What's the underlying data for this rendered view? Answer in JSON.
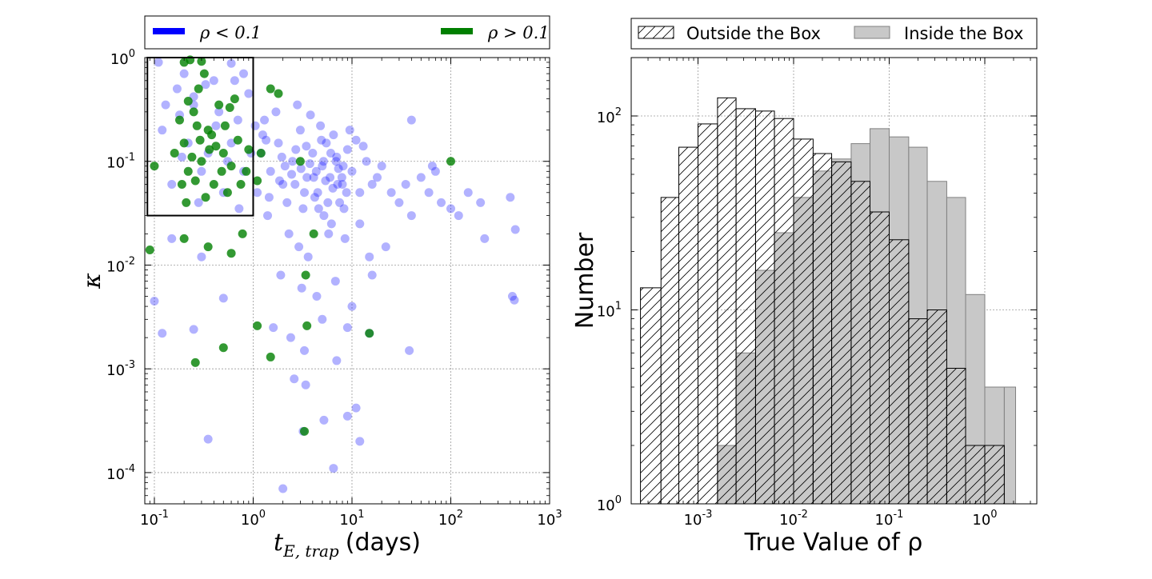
{
  "chart_data": [
    {
      "type": "scatter",
      "xlabel": "t_{E,trap} (days)",
      "xlabel_math": "t",
      "xlabel_sub": "E, trap",
      "xlabel_unit": "(days)",
      "ylabel": "κ",
      "xscale": "log",
      "yscale": "log",
      "xlim": [
        0.08,
        1000
      ],
      "ylim": [
        5e-05,
        1
      ],
      "xticks": [
        {
          "v": 0.1,
          "base": "10",
          "exp": "-1"
        },
        {
          "v": 1,
          "base": "10",
          "exp": "0"
        },
        {
          "v": 10,
          "base": "10",
          "exp": "1"
        },
        {
          "v": 100,
          "base": "10",
          "exp": "2"
        },
        {
          "v": 1000,
          "base": "10",
          "exp": "3"
        }
      ],
      "yticks": [
        {
          "v": 0.0001,
          "base": "10",
          "exp": "-4"
        },
        {
          "v": 0.001,
          "base": "10",
          "exp": "-3"
        },
        {
          "v": 0.01,
          "base": "10",
          "exp": "-2"
        },
        {
          "v": 0.1,
          "base": "10",
          "exp": "-1"
        },
        {
          "v": 1,
          "base": "10",
          "exp": "0"
        }
      ],
      "grid": true,
      "legend": {
        "placement": "top",
        "entries": [
          {
            "label": "ρ < 0.1",
            "color": "#0000ff"
          },
          {
            "label": "ρ > 0.1",
            "color": "#007f00"
          }
        ]
      },
      "box": {
        "x": [
          0.085,
          1.0
        ],
        "y": [
          0.03,
          1.0
        ]
      },
      "series": [
        {
          "color": "#0000ff",
          "opacity": 0.3,
          "points": [
            [
              0.17,
              0.5
            ],
            [
              0.25,
              0.35
            ],
            [
              0.4,
              0.6
            ],
            [
              0.12,
              0.2
            ],
            [
              0.6,
              0.15
            ],
            [
              0.3,
              0.08
            ],
            [
              0.9,
              0.45
            ],
            [
              0.15,
              0.06
            ],
            [
              0.5,
              0.05
            ],
            [
              0.2,
              0.7
            ],
            [
              0.7,
              0.25
            ],
            [
              0.35,
              0.12
            ],
            [
              0.13,
              0.35
            ],
            [
              0.8,
              0.08
            ],
            [
              0.45,
              0.3
            ],
            [
              0.22,
              0.15
            ],
            [
              0.11,
              0.9
            ],
            [
              0.65,
              0.6
            ],
            [
              0.28,
              0.04
            ],
            [
              0.55,
              0.1
            ],
            [
              1.2,
              0.12
            ],
            [
              1.5,
              0.08
            ],
            [
              1.8,
              0.15
            ],
            [
              2.0,
              0.06
            ],
            [
              2.5,
              0.1
            ],
            [
              3.0,
              0.2
            ],
            [
              3.5,
              0.07
            ],
            [
              4.0,
              0.12
            ],
            [
              4.5,
              0.05
            ],
            [
              5.0,
              0.09
            ],
            [
              5.5,
              0.15
            ],
            [
              6.0,
              0.07
            ],
            [
              7.0,
              0.11
            ],
            [
              8.0,
              0.06
            ],
            [
              9.0,
              0.13
            ],
            [
              10,
              0.08
            ],
            [
              12,
              0.05
            ],
            [
              14,
              0.1
            ],
            [
              16,
              0.06
            ],
            [
              18,
              0.07
            ],
            [
              20,
              0.09
            ],
            [
              25,
              0.05
            ],
            [
              30,
              0.04
            ],
            [
              35,
              0.06
            ],
            [
              40,
              0.03
            ],
            [
              2.2,
              0.04
            ],
            [
              3.2,
              0.035
            ],
            [
              4.2,
              0.045
            ],
            [
              5.2,
              0.03
            ],
            [
              6.2,
              0.025
            ],
            [
              7.5,
              0.04
            ],
            [
              1.3,
              0.25
            ],
            [
              1.7,
              0.3
            ],
            [
              2.8,
              0.35
            ],
            [
              3.8,
              0.28
            ],
            [
              4.8,
              0.22
            ],
            [
              6.5,
              0.18
            ],
            [
              9.5,
              0.2
            ],
            [
              11,
              0.16
            ],
            [
              13,
              0.14
            ],
            [
              1.1,
              0.05
            ],
            [
              1.4,
              0.03
            ],
            [
              2.3,
              0.02
            ],
            [
              2.9,
              0.015
            ],
            [
              3.6,
              0.012
            ],
            [
              5.8,
              0.02
            ],
            [
              8.5,
              0.018
            ],
            [
              12,
              0.025
            ],
            [
              15,
              0.012
            ],
            [
              22,
              0.015
            ],
            [
              1.9,
              0.008
            ],
            [
              3.1,
              0.006
            ],
            [
              4.4,
              0.005
            ],
            [
              6.8,
              0.007
            ],
            [
              10,
              0.004
            ],
            [
              16,
              0.008
            ],
            [
              1.6,
              0.0025
            ],
            [
              2.4,
              0.002
            ],
            [
              3.3,
              0.0015
            ],
            [
              5,
              0.003
            ],
            [
              7,
              0.0012
            ],
            [
              9,
              0.0025
            ],
            [
              2.6,
              0.0008
            ],
            [
              3.4,
              0.0007
            ],
            [
              9,
              0.00035
            ],
            [
              6.5,
              0.00011
            ],
            [
              2.0,
              7e-05
            ],
            [
              0.35,
              0.00021
            ],
            [
              0.5,
              0.0048
            ],
            [
              0.25,
              0.0024
            ],
            [
              0.12,
              0.0022
            ],
            [
              0.1,
              0.0045
            ],
            [
              0.15,
              0.018
            ],
            [
              0.3,
              0.012
            ],
            [
              50,
              0.07
            ],
            [
              60,
              0.05
            ],
            [
              70,
              0.08
            ],
            [
              80,
              0.04
            ],
            [
              120,
              0.03
            ],
            [
              150,
              0.05
            ],
            [
              200,
              0.04
            ],
            [
              400,
              0.045
            ],
            [
              450,
              0.022
            ],
            [
              220,
              0.018
            ],
            [
              420,
              0.005
            ],
            [
              440,
              0.0046
            ],
            [
              100,
              0.035
            ],
            [
              65,
              0.09
            ],
            [
              38,
              0.0015
            ],
            [
              40,
              0.25
            ],
            [
              15,
              0.0022
            ],
            [
              12,
              0.0002
            ],
            [
              11,
              0.00042
            ],
            [
              5.2,
              0.00032
            ],
            [
              3.2,
              0.00025
            ],
            [
              0.8,
              0.7
            ],
            [
              0.6,
              0.88
            ],
            [
              0.25,
              0.42
            ],
            [
              0.18,
              0.28
            ],
            [
              0.42,
              0.22
            ],
            [
              0.72,
              0.035
            ],
            [
              0.95,
              0.12
            ],
            [
              0.33,
              0.55
            ],
            [
              0.19,
              0.11
            ],
            [
              1.25,
              0.18
            ],
            [
              2.1,
              0.09
            ],
            [
              2.7,
              0.13
            ],
            [
              3.3,
              0.05
            ],
            [
              4.1,
              0.07
            ],
            [
              4.9,
              0.16
            ],
            [
              5.7,
              0.04
            ],
            [
              6.9,
              0.1
            ],
            [
              7.9,
              0.07
            ],
            [
              8.8,
              0.05
            ],
            [
              1.45,
              0.045
            ],
            [
              1.85,
              0.065
            ],
            [
              2.45,
              0.075
            ],
            [
              3.05,
              0.085
            ],
            [
              3.75,
              0.095
            ],
            [
              4.6,
              0.035
            ],
            [
              5.4,
              0.065
            ],
            [
              6.4,
              0.055
            ],
            [
              7.3,
              0.085
            ],
            [
              8.3,
              0.035
            ],
            [
              1.05,
              0.22
            ],
            [
              1.35,
              0.16
            ],
            [
              1.95,
              0.11
            ],
            [
              2.65,
              0.06
            ],
            [
              3.45,
              0.14
            ],
            [
              4.35,
              0.08
            ],
            [
              5.15,
              0.1
            ],
            [
              6.1,
              0.12
            ],
            [
              7.15,
              0.06
            ],
            [
              8.15,
              0.09
            ]
          ]
        },
        {
          "color": "#007f00",
          "opacity": 0.8,
          "points": [
            [
              0.2,
              0.15
            ],
            [
              0.25,
              0.3
            ],
            [
              0.3,
              0.1
            ],
            [
              0.22,
              0.08
            ],
            [
              0.35,
              0.2
            ],
            [
              0.4,
              0.06
            ],
            [
              0.28,
              0.5
            ],
            [
              0.18,
              0.25
            ],
            [
              0.5,
              0.12
            ],
            [
              0.6,
              0.09
            ],
            [
              0.45,
              0.35
            ],
            [
              0.21,
              0.04
            ],
            [
              0.32,
              0.7
            ],
            [
              0.55,
              0.05
            ],
            [
              0.38,
              0.18
            ],
            [
              0.24,
              0.11
            ],
            [
              0.27,
              0.22
            ],
            [
              0.42,
              0.14
            ],
            [
              0.7,
              0.16
            ],
            [
              0.85,
              0.08
            ],
            [
              0.2,
              0.9
            ],
            [
              0.23,
              0.95
            ],
            [
              0.3,
              0.92
            ],
            [
              0.65,
              0.4
            ],
            [
              0.75,
              0.06
            ],
            [
              0.9,
              0.13
            ],
            [
              0.19,
              0.06
            ],
            [
              0.33,
              0.045
            ],
            [
              0.48,
              0.08
            ],
            [
              0.16,
              0.12
            ],
            [
              0.1,
              0.09
            ],
            [
              0.26,
              0.065
            ],
            [
              0.36,
              0.13
            ],
            [
              0.52,
              0.22
            ],
            [
              0.58,
              0.33
            ],
            [
              0.22,
              0.38
            ],
            [
              0.29,
              0.16
            ],
            [
              1.2,
              0.12
            ],
            [
              1.5,
              0.5
            ],
            [
              1.8,
              0.45
            ],
            [
              3.0,
              0.1
            ],
            [
              1.1,
              0.065
            ],
            [
              0.2,
              0.018
            ],
            [
              0.35,
              0.015
            ],
            [
              0.6,
              0.013
            ],
            [
              1.5,
              0.0013
            ],
            [
              0.26,
              0.00115
            ],
            [
              0.5,
              0.0016
            ],
            [
              1.1,
              0.0026
            ],
            [
              3.5,
              0.0026
            ],
            [
              15,
              0.0022
            ],
            [
              3.3,
              0.00025
            ],
            [
              100,
              0.1
            ],
            [
              4.1,
              0.02
            ],
            [
              3.4,
              0.008
            ],
            [
              0.09,
              0.014
            ],
            [
              0.78,
              0.02
            ]
          ]
        }
      ]
    },
    {
      "type": "histogram",
      "xlabel": "True Value of ρ",
      "ylabel": "Number",
      "xscale": "log",
      "yscale": "log",
      "xlim": [
        0.0002,
        3.5
      ],
      "ylim": [
        1,
        200
      ],
      "xticks": [
        {
          "v": 0.001,
          "base": "10",
          "exp": "-3"
        },
        {
          "v": 0.01,
          "base": "10",
          "exp": "-2"
        },
        {
          "v": 0.1,
          "base": "10",
          "exp": "-1"
        },
        {
          "v": 1,
          "base": "10",
          "exp": "0"
        }
      ],
      "yticks": [
        {
          "v": 1,
          "base": "10",
          "exp": "0"
        },
        {
          "v": 10,
          "base": "10",
          "exp": "1"
        },
        {
          "v": 100,
          "base": "10",
          "exp": "2"
        }
      ],
      "grid": true,
      "legend": {
        "placement": "top",
        "entries": [
          {
            "label": "Outside the Box",
            "style": "hatched"
          },
          {
            "label": "Inside the Box",
            "style": "gray"
          }
        ]
      },
      "bin_edges": [
        0.00025,
        0.00041,
        0.00063,
        0.001,
        0.0016,
        0.0025,
        0.004,
        0.0063,
        0.01,
        0.016,
        0.025,
        0.04,
        0.063,
        0.1,
        0.16,
        0.25,
        0.4,
        0.63,
        1.0,
        1.6,
        2.1
      ],
      "series": [
        {
          "name": "Outside the Box",
          "style": "hatched",
          "values": [
            13,
            38,
            69,
            91,
            124,
            109,
            106,
            97,
            76,
            64,
            58,
            46,
            32,
            23,
            9,
            10,
            5,
            2,
            2,
            0
          ]
        },
        {
          "name": "Inside the Box",
          "style": "gray",
          "values": [
            0,
            0,
            0,
            0,
            2,
            6,
            16,
            25,
            38,
            52,
            60,
            72,
            86,
            78,
            69,
            46,
            38,
            12,
            4,
            4
          ]
        }
      ]
    }
  ]
}
